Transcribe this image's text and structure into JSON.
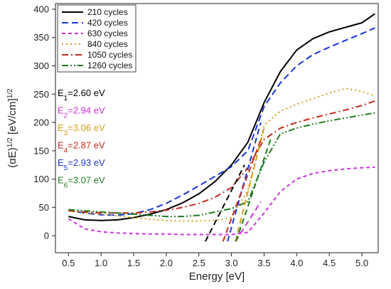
{
  "chart_data": {
    "type": "line",
    "xlabel": "Energy [eV]",
    "ylabel": "(αE)^1/2 [eV/cm]^1/2",
    "xlim": [
      0.3,
      5.25
    ],
    "ylim": [
      -30,
      410
    ],
    "x_ticks": [
      0.5,
      1.0,
      1.5,
      2.0,
      2.5,
      3.0,
      3.5,
      4.0,
      4.5,
      5.0
    ],
    "x_tick_labels": [
      "0.5",
      "1.0",
      "1.5",
      "2.0",
      "2.5",
      "3.0",
      "3.5",
      "4.0",
      "4.5",
      "5.0"
    ],
    "y_ticks": [
      0,
      50,
      100,
      150,
      200,
      250,
      300,
      350,
      400
    ],
    "y_tick_labels": [
      "0",
      "50",
      "100",
      "150",
      "200",
      "250",
      "300",
      "350",
      "400"
    ],
    "legend_position": "top-left",
    "series": [
      {
        "name": "210 cycles",
        "color": "#000000",
        "dash": "solid",
        "x": [
          0.5,
          0.75,
          1.0,
          1.25,
          1.5,
          1.75,
          2.0,
          2.25,
          2.5,
          2.75,
          3.0,
          3.25,
          3.5,
          3.75,
          4.0,
          4.25,
          4.5,
          4.75,
          5.0,
          5.2
        ],
        "y": [
          34,
          28,
          27,
          28,
          32,
          38,
          46,
          58,
          74,
          96,
          125,
          165,
          235,
          290,
          328,
          348,
          360,
          368,
          376,
          392
        ]
      },
      {
        "name": "420 cycles",
        "color": "#1a35d6",
        "dash": "dash",
        "x": [
          0.5,
          0.75,
          1.0,
          1.25,
          1.5,
          1.75,
          2.0,
          2.25,
          2.5,
          2.75,
          3.0,
          3.25,
          3.5,
          3.75,
          4.0,
          4.25,
          4.5,
          4.75,
          5.0,
          5.2
        ],
        "y": [
          45,
          40,
          37,
          36,
          39,
          46,
          57,
          72,
          88,
          105,
          122,
          150,
          228,
          270,
          300,
          320,
          333,
          345,
          357,
          367
        ]
      },
      {
        "name": "630 cycles",
        "color": "#cc33dd",
        "dash": "shortdash",
        "x": [
          0.5,
          0.75,
          1.0,
          1.25,
          1.5,
          1.75,
          2.0,
          2.25,
          2.5,
          2.75,
          3.0,
          3.25,
          3.5,
          3.75,
          4.0,
          4.25,
          4.5,
          4.75,
          5.0,
          5.2
        ],
        "y": [
          30,
          12,
          7,
          5,
          4,
          3,
          3,
          2,
          2,
          2,
          2,
          6,
          40,
          78,
          100,
          110,
          115,
          118,
          120,
          121
        ]
      },
      {
        "name": "840 cycles",
        "color": "#d4a017",
        "dash": "dot",
        "x": [
          0.5,
          0.75,
          1.0,
          1.25,
          1.5,
          1.75,
          2.0,
          2.25,
          2.5,
          2.75,
          3.0,
          3.25,
          3.5,
          3.75,
          4.0,
          4.25,
          4.5,
          4.75,
          5.0,
          5.2
        ],
        "y": [
          44,
          40,
          38,
          35,
          32,
          29,
          27,
          26,
          26,
          27,
          32,
          80,
          195,
          220,
          232,
          242,
          252,
          260,
          255,
          247
        ]
      },
      {
        "name": "1050 cycles",
        "color": "#c62a1c",
        "dash": "dashdot",
        "x": [
          0.5,
          0.75,
          1.0,
          1.25,
          1.5,
          1.75,
          2.0,
          2.25,
          2.5,
          2.75,
          3.0,
          3.25,
          3.5,
          3.75,
          4.0,
          4.25,
          4.5,
          4.75,
          5.0,
          5.2
        ],
        "y": [
          44,
          42,
          40,
          40,
          40,
          42,
          45,
          50,
          57,
          68,
          85,
          120,
          170,
          190,
          200,
          208,
          215,
          222,
          230,
          238
        ]
      },
      {
        "name": "1260 cycles",
        "color": "#1f7a1f",
        "dash": "dashdotdot",
        "x": [
          0.5,
          0.75,
          1.0,
          1.25,
          1.5,
          1.75,
          2.0,
          2.25,
          2.5,
          2.75,
          3.0,
          3.25,
          3.5,
          3.75,
          4.0,
          4.25,
          4.5,
          4.75,
          5.0,
          5.2
        ],
        "y": [
          46,
          44,
          42,
          40,
          38,
          36,
          34,
          34,
          36,
          42,
          48,
          60,
          130,
          180,
          190,
          197,
          203,
          208,
          213,
          217
        ]
      }
    ],
    "tangent_lines": [
      {
        "series": "210 cycles",
        "color": "#000000",
        "dash": "dash",
        "x": [
          2.6,
          3.2
        ],
        "y": [
          -10,
          125
        ]
      },
      {
        "series": "420 cycles",
        "color": "#1a35d6",
        "dash": "dash",
        "x": [
          2.94,
          3.45
        ],
        "y": [
          -10,
          200
        ]
      },
      {
        "series": "630 cycles",
        "color": "#cc33dd",
        "dash": "dash",
        "x": [
          3.06,
          3.45
        ],
        "y": [
          -10,
          60
        ]
      },
      {
        "series": "840 cycles",
        "color": "#d4a017",
        "dash": "dash",
        "x": [
          3.06,
          3.5
        ],
        "y": [
          -10,
          190
        ]
      },
      {
        "series": "1050 cycles",
        "color": "#c62a1c",
        "dash": "dash",
        "x": [
          2.87,
          3.45
        ],
        "y": [
          -10,
          170
        ]
      },
      {
        "series": "1260 cycles",
        "color": "#1f7a1f",
        "dash": "dash",
        "x": [
          3.07,
          3.6
        ],
        "y": [
          -10,
          170
        ]
      }
    ],
    "annotations": [
      {
        "label": "E",
        "subscript": "1",
        "value": "=2.60 eV",
        "color": "#000000"
      },
      {
        "label": "E",
        "subscript": "2",
        "value": "=2.94 eV",
        "color": "#cc33dd"
      },
      {
        "label": "E",
        "subscript": "3",
        "value": "=3.06 eV",
        "color": "#d4a017"
      },
      {
        "label": "E",
        "subscript": "4",
        "value": "=2.87 eV",
        "color": "#c62a1c"
      },
      {
        "label": "E",
        "subscript": "5",
        "value": "=2.93 eV",
        "color": "#1a35d6"
      },
      {
        "label": "E",
        "subscript": "6",
        "value": "=3.07 eV",
        "color": "#1f7a1f"
      }
    ]
  }
}
